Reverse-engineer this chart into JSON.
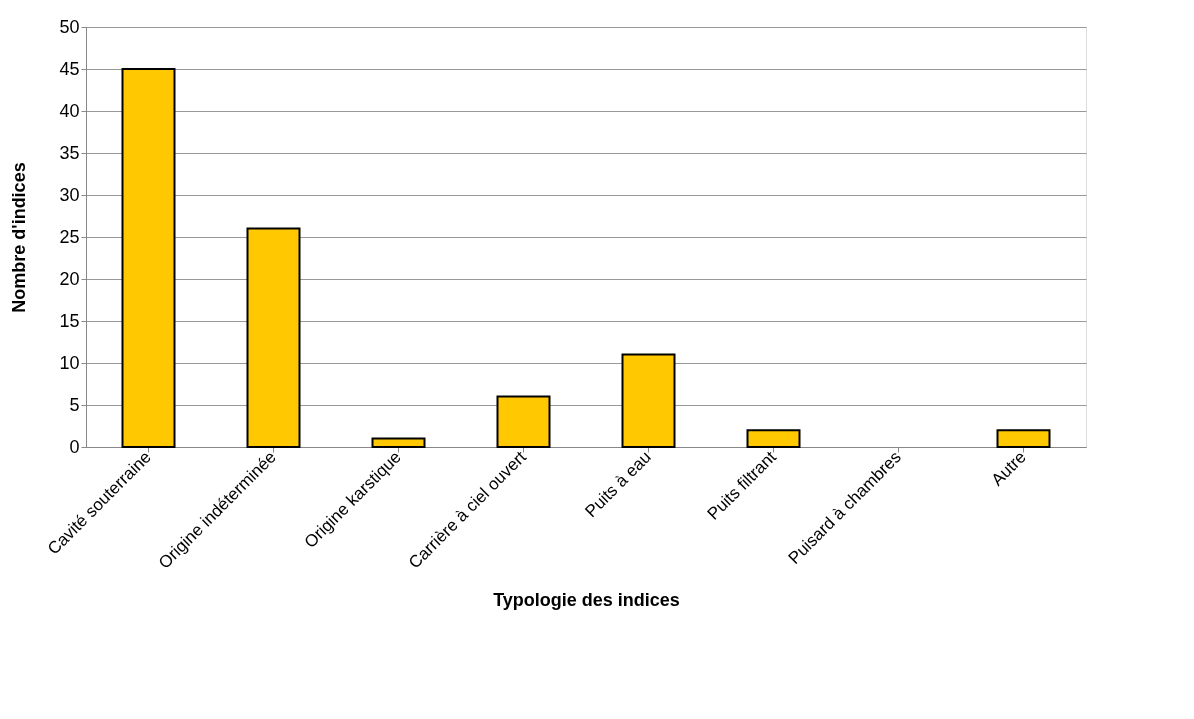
{
  "chart_data": {
    "type": "bar",
    "xlabel": "Typologie des indices",
    "ylabel": "Nombre d'indices",
    "categories": [
      "Cavité souterraine",
      "Origine indéterminée",
      "Origine karstique",
      "Carrière à ciel ouvert",
      "Puits à eau",
      "Puits filtrant",
      "Puisard à chambres",
      "Autre"
    ],
    "values": [
      45,
      26,
      1,
      6,
      11,
      2,
      0,
      2
    ],
    "color": "#ffc800",
    "ylim": [
      0,
      50
    ],
    "yticks": [
      0,
      5,
      10,
      15,
      20,
      25,
      30,
      35,
      40,
      45,
      50
    ],
    "grid": "y",
    "legend": false
  }
}
